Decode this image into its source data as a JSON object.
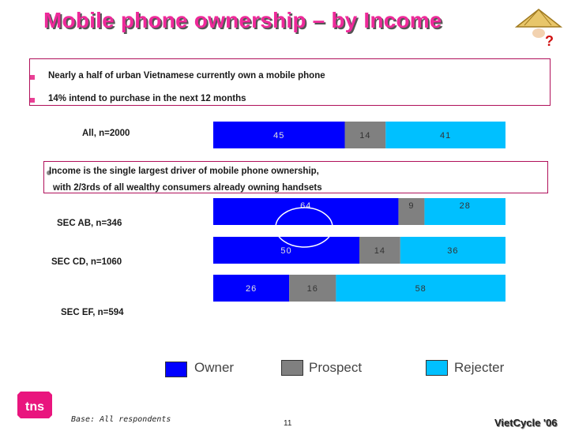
{
  "title": "Mobile phone ownership – by Income",
  "bullets": [
    "Nearly a half of urban Vietnamese currently own a mobile phone",
    "14% intend to purchase in the next 12 months"
  ],
  "callout_line1": "Income is the single largest driver of mobile phone ownership,",
  "callout_line2": "with 2/3rds of all wealthy consumers already owning handsets",
  "colors": {
    "owner": "#0000ff",
    "prospect": "#808080",
    "rejecter": "#00c0ff",
    "accent": "#ee2a9a"
  },
  "chart_data": {
    "type": "bar",
    "orientation": "horizontal",
    "stacked": true,
    "categories": [
      "All, n=2000",
      "SEC AB, n=346",
      "SEC CD, n=1060",
      "SEC EF, n=594"
    ],
    "series": [
      {
        "name": "Owner",
        "values": [
          45,
          64,
          50,
          26
        ]
      },
      {
        "name": "Prospect",
        "values": [
          14,
          9,
          14,
          16
        ]
      },
      {
        "name": "Rejecter",
        "values": [
          41,
          28,
          36,
          58
        ]
      }
    ],
    "legend_position": "bottom",
    "grid": false
  },
  "footer": {
    "base": "Base: All respondents",
    "page": "11",
    "brand": "VietCycle '06"
  },
  "logo_text": "tns"
}
